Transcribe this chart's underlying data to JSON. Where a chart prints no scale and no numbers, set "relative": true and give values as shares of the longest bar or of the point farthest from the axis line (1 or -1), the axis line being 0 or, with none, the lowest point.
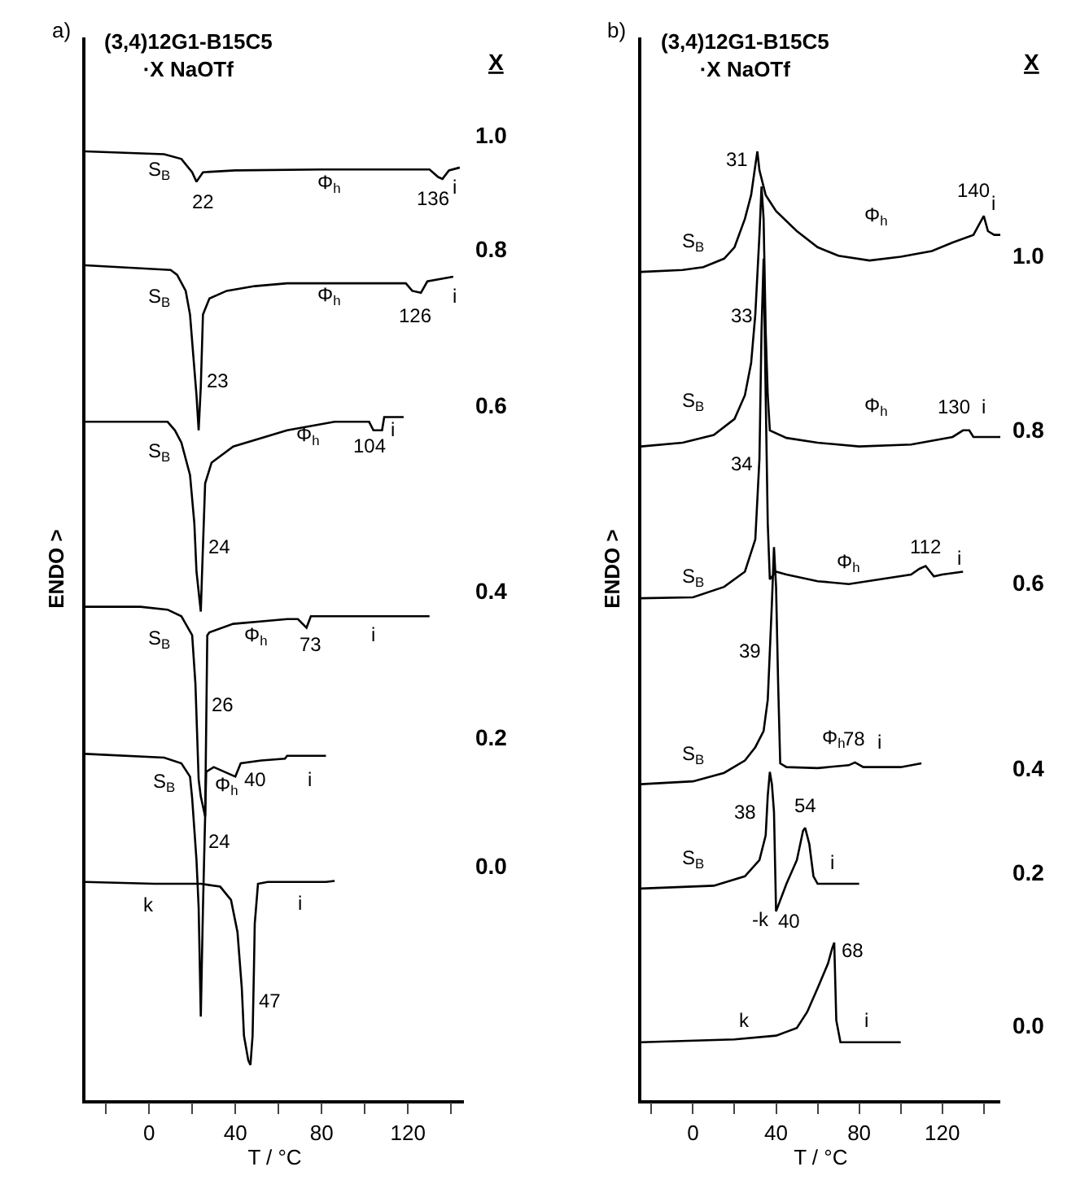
{
  "chart_data": [
    {
      "type": "line",
      "title": "(3,4)12G1-B15C5\n·X NaOTf",
      "xlabel": "T / °C",
      "ylabel": "ENDO >",
      "legend_title": "X",
      "relative": true,
      "tick_labels": "x",
      "legend": false,
      "grid": false,
      "marker": "none",
      "line_style": "solid",
      "xlim": [
        -29.5,
        146
      ],
      "xticks": [
        {
          "value": -20,
          "label": null
        },
        0,
        {
          "value": 20,
          "label": null
        },
        40,
        {
          "value": 60,
          "label": null
        },
        80,
        {
          "value": 100,
          "label": null
        },
        120,
        {
          "value": 140,
          "label": null
        }
      ],
      "series": [
        {
          "name": "1.0",
          "color": "#000000",
          "x": [
            -29.5,
            7,
            15,
            20,
            22,
            25,
            40,
            80,
            130,
            134,
            136,
            139,
            144
          ],
          "values": [
            1.0,
            0.997,
            0.992,
            0.978,
            0.968,
            0.978,
            0.98,
            0.981,
            0.981,
            0.973,
            0.971,
            0.98,
            0.983
          ]
        },
        {
          "name": "0.8",
          "color": "#000000",
          "x": [
            -29.5,
            10,
            13,
            17,
            19,
            20.5,
            22,
            23,
            24,
            25,
            28,
            36,
            49,
            64,
            119,
            122,
            126,
            129,
            141
          ],
          "values": [
            0.88,
            0.875,
            0.87,
            0.853,
            0.828,
            0.785,
            0.743,
            0.706,
            0.752,
            0.828,
            0.845,
            0.853,
            0.858,
            0.861,
            0.861,
            0.853,
            0.851,
            0.863,
            0.868
          ]
        },
        {
          "name": "0.6",
          "color": "#000000",
          "x": [
            -29.5,
            8.6,
            12,
            15,
            19,
            21,
            22,
            24,
            24.6,
            26,
            29,
            39,
            64,
            86,
            102,
            104,
            108,
            109,
            118
          ],
          "values": [
            0.715,
            0.715,
            0.706,
            0.693,
            0.659,
            0.608,
            0.557,
            0.515,
            0.557,
            0.65,
            0.672,
            0.689,
            0.706,
            0.715,
            0.715,
            0.706,
            0.706,
            0.72,
            0.72
          ]
        },
        {
          "name": "0.4",
          "color": "#000000",
          "x": [
            -29.5,
            -4,
            8.6,
            15,
            20,
            21.5,
            23,
            24,
            26,
            27,
            28,
            39,
            64,
            69,
            73,
            75,
            77.5,
            130
          ],
          "values": [
            0.52,
            0.52,
            0.517,
            0.51,
            0.49,
            0.439,
            0.338,
            0.32,
            0.299,
            0.49,
            0.493,
            0.502,
            0.507,
            0.507,
            0.498,
            0.51,
            0.51,
            0.51
          ]
        },
        {
          "name": "0.2",
          "color": "#000000",
          "x": [
            -29.5,
            7,
            15,
            19,
            20,
            22,
            23,
            24,
            25,
            26.5,
            30,
            40,
            42.5,
            52,
            63,
            64,
            82
          ],
          "values": [
            0.365,
            0.361,
            0.355,
            0.341,
            0.318,
            0.253,
            0.203,
            0.088,
            0.203,
            0.346,
            0.351,
            0.341,
            0.355,
            0.358,
            0.36,
            0.363,
            0.363
          ]
        },
        {
          "name": "0.0",
          "color": "#000000",
          "x": [
            -29.5,
            2.5,
            24,
            33,
            38,
            41,
            43,
            44,
            46,
            47,
            48,
            48.6,
            49,
            50.5,
            55,
            82,
            86
          ],
          "values": [
            0.23,
            0.228,
            0.228,
            0.225,
            0.211,
            0.177,
            0.118,
            0.068,
            0.042,
            0.037,
            0.068,
            0.135,
            0.186,
            0.228,
            0.23,
            0.23,
            0.231
          ]
        }
      ],
      "annotations": [
        "a)",
        "S$_{B}$",
        "Φ$_{h}$",
        "i",
        "S$_{B}$",
        "Φ$_{h}$",
        "i",
        "S$_{B}$",
        "Φ$_{h}$",
        "i",
        "S$_{B}$",
        "Φ$_{h}$",
        "i",
        "S$_{B}$",
        "Φ$_{h}$",
        "i",
        "k",
        "i",
        "26",
        "24",
        {
          "text": "22",
          "x": 22,
          "y": 0.968
        },
        {
          "text": "136",
          "x": 136,
          "y": 0.971
        },
        {
          "text": "23",
          "x": 23,
          "y": 0.706
        },
        {
          "text": "126",
          "x": 126,
          "y": 0.851
        },
        {
          "text": "24",
          "x": 24,
          "y": 0.515
        },
        {
          "text": "104",
          "x": 104,
          "y": 0.706
        },
        {
          "text": "73",
          "x": 73,
          "y": 0.498
        },
        {
          "text": "40",
          "x": 40,
          "y": 0.341
        },
        {
          "text": "47",
          "x": 47,
          "y": 0.037
        }
      ]
    },
    {
      "type": "line",
      "title": "(3,4)12G1-B15C5\n·X NaOTf",
      "xlabel": "T / °C",
      "ylabel": "ENDO >",
      "legend_title": "X",
      "relative": true,
      "tick_labels": "x",
      "legend": false,
      "grid": false,
      "marker": "none",
      "line_style": "solid",
      "xlim": [
        -25,
        148
      ],
      "xticks": [
        {
          "value": -20,
          "label": null
        },
        0,
        {
          "value": 20,
          "label": null
        },
        40,
        {
          "value": 60,
          "label": null
        },
        80,
        {
          "value": 100,
          "label": null
        },
        120,
        {
          "value": 140,
          "label": null
        }
      ],
      "series": [
        {
          "name": "1.0",
          "color": "#000000",
          "x": [
            -25,
            -5,
            5,
            15,
            20,
            25,
            28,
            30,
            31,
            32,
            35,
            40,
            50,
            60,
            70,
            85,
            100,
            115,
            125,
            135,
            138,
            140,
            142,
            145,
            148
          ],
          "values": [
            0.873,
            0.875,
            0.878,
            0.887,
            0.899,
            0.929,
            0.954,
            0.985,
            1.0,
            0.98,
            0.954,
            0.937,
            0.916,
            0.899,
            0.89,
            0.885,
            0.889,
            0.895,
            0.904,
            0.912,
            0.924,
            0.932,
            0.916,
            0.912,
            0.912
          ]
        },
        {
          "name": "0.8",
          "color": "#000000",
          "x": [
            -25,
            -5,
            10,
            20,
            25,
            28,
            30,
            32,
            33,
            34,
            35,
            36,
            37,
            45,
            60,
            80,
            105,
            125,
            130,
            133,
            135,
            148
          ],
          "values": [
            0.689,
            0.693,
            0.701,
            0.718,
            0.743,
            0.777,
            0.828,
            0.912,
            0.963,
            0.929,
            0.811,
            0.743,
            0.706,
            0.698,
            0.693,
            0.689,
            0.691,
            0.699,
            0.706,
            0.706,
            0.699,
            0.699
          ]
        },
        {
          "name": "0.6",
          "color": "#000000",
          "x": [
            -25,
            0,
            15,
            25,
            30,
            32,
            33,
            34,
            35,
            36,
            37,
            40,
            45,
            60,
            75,
            105,
            109,
            112,
            116,
            120,
            130
          ],
          "values": [
            0.529,
            0.53,
            0.541,
            0.557,
            0.591,
            0.676,
            0.811,
            0.887,
            0.743,
            0.608,
            0.549,
            0.557,
            0.554,
            0.547,
            0.544,
            0.554,
            0.56,
            0.563,
            0.552,
            0.554,
            0.557
          ]
        },
        {
          "name": "0.4",
          "color": "#000000",
          "x": [
            -25,
            0,
            15,
            25,
            30,
            34,
            36,
            37,
            38,
            39,
            40,
            41,
            42,
            45,
            60,
            75,
            78,
            82,
            100,
            110
          ],
          "values": [
            0.333,
            0.336,
            0.345,
            0.358,
            0.372,
            0.389,
            0.422,
            0.473,
            0.524,
            0.583,
            0.541,
            0.439,
            0.355,
            0.351,
            0.35,
            0.353,
            0.356,
            0.351,
            0.351,
            0.355
          ]
        },
        {
          "name": "0.2",
          "color": "#000000",
          "x": [
            -25,
            10,
            25,
            32,
            35,
            36,
            37,
            38,
            39,
            40,
            45,
            50,
            53,
            54,
            56,
            58,
            60,
            80
          ],
          "values": [
            0.223,
            0.226,
            0.236,
            0.253,
            0.279,
            0.321,
            0.346,
            0.333,
            0.304,
            0.199,
            0.228,
            0.253,
            0.284,
            0.287,
            0.27,
            0.236,
            0.228,
            0.228
          ]
        },
        {
          "name": "0.0",
          "color": "#000000",
          "x": [
            -25,
            20,
            40,
            50,
            55,
            60,
            65,
            67,
            68,
            69,
            71,
            100
          ],
          "values": [
            0.061,
            0.064,
            0.068,
            0.076,
            0.093,
            0.118,
            0.144,
            0.16,
            0.166,
            0.084,
            0.061,
            0.061
          ]
        }
      ],
      "annotations": [
        "b)",
        "S$_{B}$",
        "Φ$_{h}$",
        "i",
        "S$_{B}$",
        "Φ$_{h}$",
        "i",
        "S$_{B}$",
        "Φ$_{h}$",
        "i",
        "S$_{B}$",
        "Φ$_{h}$",
        "i",
        "S$_{B}$",
        "i",
        "-k",
        "k",
        "i",
        "33",
        "34",
        "39",
        {
          "text": "31",
          "x": 31,
          "y": 1.0
        },
        {
          "text": "140",
          "x": 140,
          "y": 0.932
        },
        {
          "text": "130",
          "x": 130,
          "y": 0.706
        },
        {
          "text": "112",
          "x": 112,
          "y": 0.563
        },
        {
          "text": "78",
          "x": 78,
          "y": 0.356
        },
        {
          "text": "38",
          "x": 38,
          "y": 0.333
        },
        {
          "text": "54",
          "x": 54,
          "y": 0.287
        },
        {
          "text": "40",
          "x": 40,
          "y": 0.199
        },
        {
          "text": "68",
          "x": 68,
          "y": 0.166
        }
      ]
    }
  ]
}
